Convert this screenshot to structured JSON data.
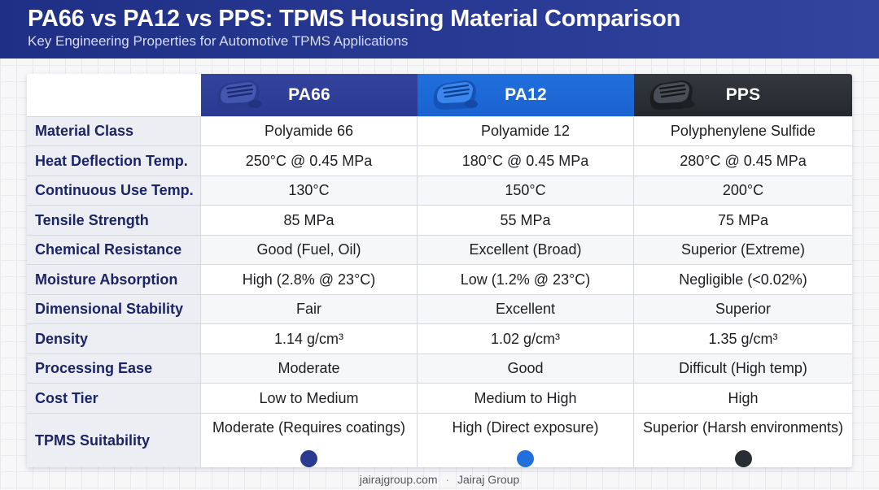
{
  "title": "PA66 vs PA12 vs PPS: TPMS Housing Material Comparison",
  "subtitle": "Key Engineering Properties for Automotive TPMS Applications",
  "columns": [
    {
      "name": "PA66",
      "color": "#2f3f98",
      "icon": "sensor-housing-icon"
    },
    {
      "name": "PA12",
      "color": "#1f6fdc",
      "icon": "sensor-housing-icon"
    },
    {
      "name": "PPS",
      "color": "#2a2d33",
      "icon": "sensor-housing-icon"
    }
  ],
  "rows": [
    {
      "label": "Material Class",
      "values": [
        "Polyamide 66",
        "Polyamide 12",
        "Polyphenylene Sulfide"
      ]
    },
    {
      "label": "Heat Deflection Temp.",
      "values": [
        "250°C @ 0.45 MPa",
        "180°C @ 0.45 MPa",
        "280°C @ 0.45 MPa"
      ]
    },
    {
      "label": "Continuous Use Temp.",
      "values": [
        "130°C",
        "150°C",
        "200°C"
      ]
    },
    {
      "label": "Tensile Strength",
      "values": [
        "85 MPa",
        "55 MPa",
        "75 MPa"
      ]
    },
    {
      "label": "Chemical Resistance",
      "values": [
        "Good (Fuel, Oil)",
        "Excellent (Broad)",
        "Superior (Extreme)"
      ]
    },
    {
      "label": "Moisture Absorption",
      "values": [
        "High (2.8% @ 23°C)",
        "Low (1.2% @ 23°C)",
        "Negligible (<0.02%)"
      ]
    },
    {
      "label": "Dimensional Stability",
      "values": [
        "Fair",
        "Excellent",
        "Superior"
      ]
    },
    {
      "label": "Density",
      "values": [
        "1.14 g/cm³",
        "1.02 g/cm³",
        "1.35 g/cm³"
      ]
    },
    {
      "label": "Processing Ease",
      "values": [
        "Moderate",
        "Good",
        "Difficult (High temp)"
      ]
    },
    {
      "label": "Cost Tier",
      "values": [
        "Low to Medium",
        "Medium to High",
        "High"
      ]
    },
    {
      "label": "TPMS Suitability",
      "values": [
        "Moderate (Requires coatings)",
        "High (Direct exposure)",
        "Superior (Harsh environments)"
      ]
    }
  ],
  "suitability_dot_colors": [
    "#2a3a8f",
    "#1f6fdc",
    "#2a2d33"
  ],
  "footer": {
    "site": "jairajgroup.com",
    "separator": "·",
    "company": "Jairaj Group"
  }
}
